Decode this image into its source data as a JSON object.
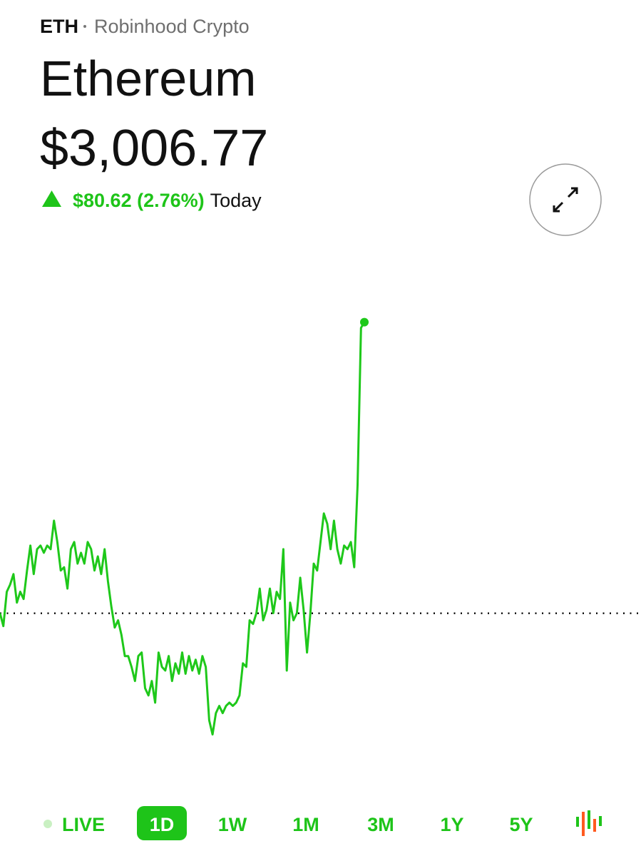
{
  "header": {
    "ticker": "ETH",
    "source": "Robinhood Crypto",
    "name": "Ethereum",
    "price": "$3,006.77",
    "change": "$80.62 (2.76%)",
    "period": "Today"
  },
  "chart_data": {
    "type": "line",
    "color": "#1ec81a",
    "ylim": [
      2870,
      3030
    ],
    "baseline": 2926.15,
    "values": [
      2926.2,
      2922.6,
      2932.1,
      2934.1,
      2937.0,
      2929.1,
      2932.1,
      2930.1,
      2938.0,
      2944.9,
      2937.0,
      2943.9,
      2944.9,
      2942.9,
      2944.9,
      2943.9,
      2951.8,
      2945.9,
      2938.0,
      2938.9,
      2933.0,
      2943.9,
      2945.9,
      2939.9,
      2942.9,
      2939.9,
      2945.9,
      2943.9,
      2938.0,
      2941.9,
      2937.0,
      2943.9,
      2935.0,
      2928.1,
      2922.2,
      2924.2,
      2920.2,
      2914.3,
      2914.3,
      2911.3,
      2907.4,
      2914.3,
      2915.3,
      2905.4,
      2903.4,
      2907.4,
      2901.4,
      2915.3,
      2911.3,
      2910.3,
      2914.3,
      2907.4,
      2912.3,
      2909.4,
      2915.3,
      2909.4,
      2914.3,
      2910.3,
      2913.3,
      2909.4,
      2914.3,
      2911.3,
      2896.5,
      2892.6,
      2898.5,
      2900.5,
      2898.5,
      2900.5,
      2901.4,
      2900.5,
      2901.4,
      2903.4,
      2912.3,
      2911.3,
      2924.2,
      2923.2,
      2926.2,
      2933.0,
      2924.2,
      2927.1,
      2933.0,
      2926.2,
      2932.1,
      2930.1,
      2943.9,
      2910.3,
      2929.1,
      2924.2,
      2926.2,
      2936.0,
      2927.1,
      2915.3,
      2926.2,
      2939.9,
      2938.0,
      2945.9,
      2953.8,
      2950.9,
      2943.9,
      2951.8,
      2943.9,
      2939.9,
      2944.9,
      2943.9,
      2945.9,
      2938.9,
      2961.7,
      3005.2,
      3006.77
    ]
  },
  "ranges": {
    "items": [
      "LIVE",
      "1D",
      "1W",
      "1M",
      "3M",
      "1Y",
      "5Y"
    ],
    "selected": 1
  }
}
